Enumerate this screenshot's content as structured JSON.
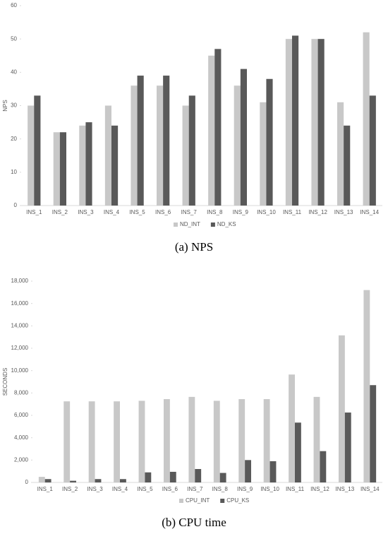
{
  "chart_data": [
    {
      "type": "bar",
      "y_label": "NPS",
      "categories": [
        "INS_1",
        "INS_2",
        "INS_3",
        "INS_4",
        "INS_5",
        "INS_6",
        "INS_7",
        "INS_8",
        "INS_9",
        "INS_10",
        "INS_11",
        "INS_12",
        "INS_13",
        "INS_14"
      ],
      "series": [
        {
          "name": "ND_INT",
          "color": "#c8c8c8",
          "values": [
            30,
            22,
            24,
            30,
            36,
            36,
            30,
            45,
            36,
            31,
            50,
            50,
            31,
            52
          ]
        },
        {
          "name": "ND_KS",
          "color": "#595959",
          "values": [
            33,
            22,
            25,
            24,
            39,
            39,
            33,
            47,
            41,
            38,
            51,
            50,
            24,
            33
          ]
        }
      ],
      "ylim": [
        0,
        60
      ],
      "yticks": [
        0,
        10,
        20,
        30,
        40,
        50,
        60
      ],
      "grid": false,
      "legend": "bottom",
      "caption": "(a) NPS"
    },
    {
      "type": "bar",
      "y_label": "SECONDS",
      "categories": [
        "INS_1",
        "INS_2",
        "INS_3",
        "INS_4",
        "INS_5",
        "INS_6",
        "INS_7",
        "INS_8",
        "INS_9",
        "INS_10",
        "INS_11",
        "INS_12",
        "INS_13",
        "INS_14"
      ],
      "series": [
        {
          "name": "CPU_INT",
          "color": "#c8c8c8",
          "values": [
            500,
            7250,
            7250,
            7250,
            7300,
            7450,
            7650,
            7300,
            7450,
            7450,
            9650,
            7650,
            13150,
            17200
          ]
        },
        {
          "name": "CPU_KS",
          "color": "#595959",
          "values": [
            300,
            150,
            300,
            300,
            900,
            950,
            1200,
            850,
            2000,
            1900,
            5350,
            2800,
            6250,
            8700
          ]
        }
      ],
      "ylim": [
        0,
        18000
      ],
      "yticks": [
        0,
        {
          "value": 2000,
          "label": "2,000"
        },
        {
          "value": 4000,
          "label": "4,000"
        },
        {
          "value": 6000,
          "label": "6,000"
        },
        {
          "value": 8000,
          "label": "8,000"
        },
        {
          "value": 10000,
          "label": "10,000"
        },
        {
          "value": 12000,
          "label": "12,000"
        },
        {
          "value": 14000,
          "label": "14,000"
        },
        {
          "value": 16000,
          "label": "16,000"
        },
        {
          "value": 18000,
          "label": "18,000"
        }
      ],
      "grid": false,
      "legend": "bottom",
      "caption": "(b) CPU time"
    }
  ]
}
